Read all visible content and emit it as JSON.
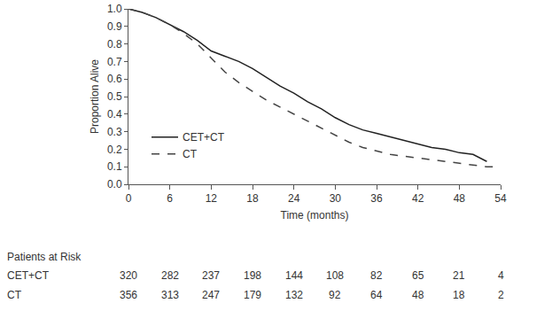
{
  "chart_data": {
    "type": "line",
    "x_label": "Time (months)",
    "y_label": "Proportion Alive",
    "xlim": [
      0,
      54
    ],
    "xticks": [
      0,
      6,
      12,
      18,
      24,
      30,
      36,
      42,
      48,
      54
    ],
    "ylim": [
      0,
      1
    ],
    "yticks": [
      {
        "value": 0,
        "label": "0.0"
      },
      0.1,
      0.2,
      0.3,
      0.4,
      0.5,
      0.6,
      0.7,
      0.8,
      0.9,
      {
        "value": 1,
        "label": "1.0"
      }
    ],
    "grid": false,
    "legend": "lower left",
    "series": [
      {
        "name": "CET+CT",
        "color": "#222222",
        "line_style": "solid",
        "x": [
          0,
          2,
          4,
          6,
          8,
          10,
          12,
          14,
          16,
          18,
          20,
          22,
          24,
          26,
          28,
          30,
          32,
          34,
          36,
          38,
          40,
          42,
          44,
          46,
          48,
          50,
          51,
          52
        ],
        "values": [
          1.0,
          0.98,
          0.95,
          0.91,
          0.87,
          0.82,
          0.76,
          0.73,
          0.7,
          0.66,
          0.61,
          0.56,
          0.52,
          0.47,
          0.43,
          0.38,
          0.34,
          0.31,
          0.29,
          0.27,
          0.25,
          0.23,
          0.21,
          0.2,
          0.18,
          0.17,
          0.15,
          0.13
        ]
      },
      {
        "name": "CT",
        "color": "#444444",
        "line_style": "dash",
        "x": [
          0,
          2,
          4,
          6,
          8,
          10,
          12,
          14,
          16,
          18,
          20,
          22,
          24,
          26,
          28,
          30,
          32,
          34,
          36,
          38,
          40,
          42,
          44,
          46,
          48,
          50,
          52,
          53
        ],
        "values": [
          1.0,
          0.98,
          0.95,
          0.91,
          0.86,
          0.8,
          0.72,
          0.64,
          0.58,
          0.53,
          0.48,
          0.44,
          0.4,
          0.36,
          0.32,
          0.28,
          0.24,
          0.21,
          0.19,
          0.17,
          0.16,
          0.15,
          0.14,
          0.13,
          0.12,
          0.11,
          0.1,
          0.1
        ]
      }
    ],
    "at_risk": {
      "title": "Patients at Risk",
      "x": [
        0,
        6,
        12,
        18,
        24,
        30,
        36,
        42,
        48,
        54
      ],
      "rows": [
        {
          "name": "CET+CT",
          "values": [
            320,
            282,
            237,
            198,
            144,
            108,
            82,
            65,
            21,
            4
          ]
        },
        {
          "name": "CT",
          "values": [
            356,
            313,
            247,
            179,
            132,
            92,
            64,
            48,
            18,
            2
          ]
        }
      ]
    }
  }
}
